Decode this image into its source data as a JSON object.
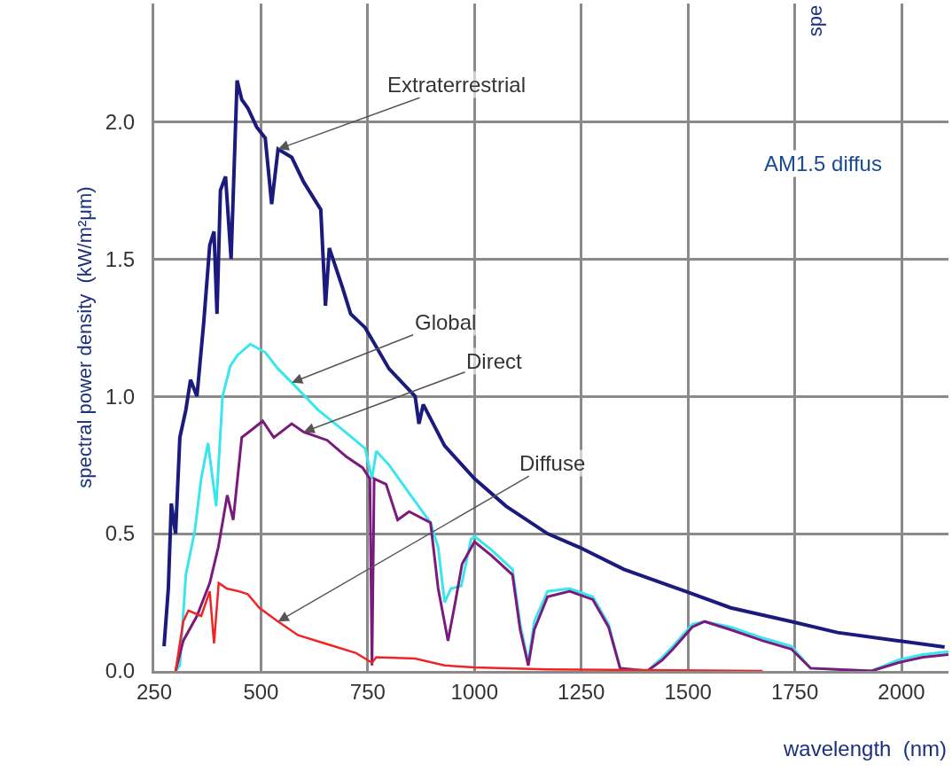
{
  "chart_data": {
    "type": "line",
    "xlabel": "wavelength  (nm)",
    "ylabel": "spectral power density  (kW/m²μm)",
    "xlim": [
      250,
      2110
    ],
    "xticks": [
      250,
      500,
      750,
      1000,
      1250,
      1500,
      1750,
      2000
    ],
    "ylim": [
      0,
      2.43
    ],
    "yticks": [
      {
        "value": 0,
        "label": "0.0"
      },
      0.5,
      {
        "value": 1,
        "label": "1.0"
      },
      1.5,
      {
        "value": 2,
        "label": "2.0"
      }
    ],
    "grid": true,
    "marker": "none",
    "line_style": "solid",
    "series": [
      {
        "color": "#1b1b7e",
        "x": [
          273,
          283,
          290,
          300,
          310,
          324,
          335,
          350,
          366,
          380,
          390,
          397,
          405,
          417,
          430,
          444,
          455,
          469,
          490,
          510,
          525,
          540,
          572,
          600,
          640,
          651,
          660,
          690,
          710,
          744,
          800,
          861,
          870,
          880,
          930,
          1000,
          1074,
          1171,
          1246,
          1350,
          1494,
          1600,
          1742,
          1850,
          1992,
          2101
        ],
        "values": [
          0.09,
          0.3,
          0.61,
          0.5,
          0.85,
          0.95,
          1.06,
          1.0,
          1.27,
          1.55,
          1.6,
          1.3,
          1.75,
          1.8,
          1.5,
          2.15,
          2.08,
          2.05,
          1.98,
          1.94,
          1.7,
          1.9,
          1.87,
          1.78,
          1.68,
          1.33,
          1.54,
          1.4,
          1.3,
          1.25,
          1.1,
          1.0,
          0.9,
          0.97,
          0.82,
          0.7,
          0.6,
          0.5,
          0.45,
          0.37,
          0.29,
          0.23,
          0.18,
          0.14,
          0.11,
          0.087
        ]
      },
      {
        "color": "#3ae6ee",
        "x": [
          300,
          310,
          324,
          345,
          360,
          376,
          395,
          410,
          428,
          445,
          475,
          510,
          540,
          572,
          634,
          690,
          744,
          760,
          770,
          800,
          841,
          897,
          915,
          930,
          945,
          969,
          992,
          1000,
          1040,
          1089,
          1107,
          1126,
          1140,
          1171,
          1223,
          1277,
          1314,
          1341,
          1405,
          1440,
          1465,
          1510,
          1539,
          1600,
          1675,
          1742,
          1787,
          1930,
          1992,
          2050,
          2110
        ],
        "values": [
          0,
          0.02,
          0.35,
          0.51,
          0.7,
          0.83,
          0.6,
          1.0,
          1.11,
          1.15,
          1.19,
          1.16,
          1.1,
          1.05,
          0.95,
          0.88,
          0.81,
          0.7,
          0.8,
          0.75,
          0.66,
          0.54,
          0.45,
          0.25,
          0.3,
          0.31,
          0.48,
          0.49,
          0.44,
          0.37,
          0.17,
          0.03,
          0.18,
          0.29,
          0.3,
          0.27,
          0.17,
          0.01,
          0,
          0.05,
          0.09,
          0.17,
          0.18,
          0.16,
          0.12,
          0.09,
          0.01,
          0,
          0.04,
          0.06,
          0.07
        ]
      },
      {
        "color": "#7a1a7c",
        "x": [
          300,
          318,
          350,
          380,
          400,
          421,
          435,
          455,
          480,
          504,
          530,
          572,
          600,
          655,
          700,
          738,
          755,
          760,
          765,
          793,
          820,
          847,
          897,
          915,
          938,
          955,
          971,
          1000,
          1040,
          1089,
          1107,
          1126,
          1140,
          1171,
          1223,
          1277,
          1314,
          1341,
          1405,
          1440,
          1465,
          1510,
          1539,
          1600,
          1675,
          1742,
          1787,
          1930,
          1992,
          2050,
          2110
        ],
        "values": [
          0,
          0.11,
          0.2,
          0.32,
          0.45,
          0.64,
          0.55,
          0.85,
          0.88,
          0.91,
          0.85,
          0.9,
          0.87,
          0.84,
          0.78,
          0.74,
          0.7,
          0.02,
          0.7,
          0.68,
          0.55,
          0.58,
          0.54,
          0.3,
          0.11,
          0.25,
          0.39,
          0.47,
          0.42,
          0.35,
          0.15,
          0.02,
          0.15,
          0.27,
          0.29,
          0.26,
          0.16,
          0.01,
          0,
          0.04,
          0.08,
          0.16,
          0.18,
          0.15,
          0.11,
          0.08,
          0.01,
          0,
          0.03,
          0.05,
          0.06
        ]
      },
      {
        "color": "#f02424",
        "x": [
          300,
          318,
          330,
          360,
          380,
          390,
          401,
          420,
          448,
          469,
          496,
          540,
          587,
          650,
          723,
          760,
          770,
          861,
          930,
          1000,
          1171,
          1400,
          1675
        ],
        "values": [
          0,
          0.18,
          0.22,
          0.2,
          0.29,
          0.1,
          0.32,
          0.3,
          0.29,
          0.28,
          0.23,
          0.18,
          0.13,
          0.1,
          0.065,
          0.03,
          0.05,
          0.045,
          0.02,
          0.013,
          0.006,
          0.003,
          0
        ]
      }
    ],
    "annotations": [
      {
        "text": "Extraterrestrial",
        "x": 540,
        "y": 1.9
      },
      {
        "text": "Global",
        "x": 572,
        "y": 1.05
      },
      {
        "text": "Direct",
        "x": 600,
        "y": 0.87
      },
      {
        "text": "Diffuse",
        "x": 540,
        "y": 0.18
      },
      "spe",
      "AM1.5 diffus"
    ]
  }
}
